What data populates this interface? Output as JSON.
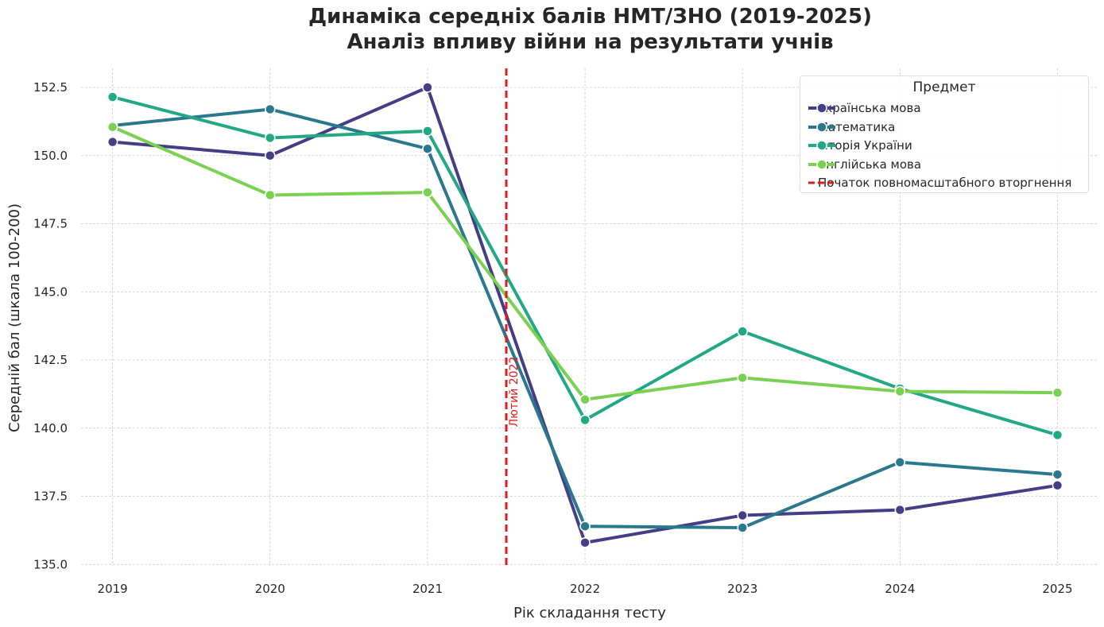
{
  "title_line1": "Динаміка середніх балів НМТ/ЗНО (2019-2025)",
  "title_line2": "Аналіз впливу війни на результати учнів",
  "chart_data": {
    "type": "line",
    "title": "Динаміка середніх балів НМТ/ЗНО (2019-2025)\nАналіз впливу війни на результати учнів",
    "xlabel": "Рік складання тесту",
    "ylabel": "Середній бал (шкала 100-200)",
    "x": [
      2019,
      2020,
      2021,
      2022,
      2023,
      2024,
      2025
    ],
    "x_tick_labels": [
      "2019",
      "2020",
      "2021",
      "2022",
      "2023",
      "2024",
      "2025"
    ],
    "ylim": [
      134.95,
      153.2
    ],
    "y_ticks": [
      135.0,
      137.5,
      140.0,
      142.5,
      145.0,
      147.5,
      150.0,
      152.5
    ],
    "y_tick_labels": [
      "135.0",
      "137.5",
      "140.0",
      "142.5",
      "145.0",
      "147.5",
      "150.0",
      "152.5"
    ],
    "grid": true,
    "legend_title": "Предмет",
    "legend_position": "top-right",
    "series": [
      {
        "name": "Українська мова",
        "color": "#433e85",
        "values": [
          150.5,
          150.0,
          152.5,
          135.8,
          136.8,
          137.0,
          137.9
        ]
      },
      {
        "name": "Математика",
        "color": "#2a788e",
        "values": [
          151.1,
          151.7,
          150.25,
          136.4,
          136.35,
          138.75,
          138.3
        ]
      },
      {
        "name": "Історія України",
        "color": "#22a884",
        "values": [
          152.15,
          150.65,
          150.9,
          140.3,
          143.55,
          141.45,
          139.75
        ]
      },
      {
        "name": "Англійська мова",
        "color": "#7ad151",
        "values": [
          151.05,
          148.55,
          148.65,
          141.05,
          141.85,
          141.35,
          141.3
        ]
      }
    ],
    "event_line": {
      "x": 2021.5,
      "color": "#e31a1c",
      "legend": "Початок повномасштабного вторгнення",
      "annotation": "Лютий 2022"
    }
  }
}
